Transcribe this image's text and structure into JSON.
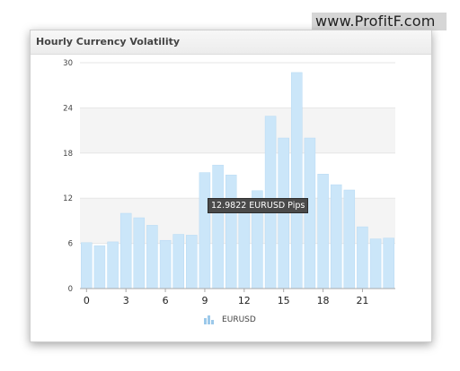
{
  "watermark": "www.ProfitF.com",
  "title": "Hourly Currency Volatility",
  "tooltip": "12.9822 EURUSD Pips",
  "legend_label": "EURUSD",
  "colors": {
    "bar": "#cbe6f9",
    "bar_stroke": "#b7daf4",
    "band": "#f4f4f4",
    "legend_icon": "#9cc9ea"
  },
  "chart_data": {
    "type": "bar",
    "title": "Hourly Currency Volatility",
    "xlabel": "",
    "ylabel": "",
    "x_ticks": [
      0,
      3,
      6,
      9,
      12,
      15,
      18,
      21
    ],
    "y_ticks": [
      0,
      6,
      12,
      18,
      24,
      30
    ],
    "ylim": [
      0,
      30
    ],
    "categories": [
      0,
      1,
      2,
      3,
      4,
      5,
      6,
      7,
      8,
      9,
      10,
      11,
      12,
      13,
      14,
      15,
      16,
      17,
      18,
      19,
      20,
      21,
      22,
      23
    ],
    "series": [
      {
        "name": "EURUSD",
        "values": [
          6.1,
          5.7,
          6.2,
          10.0,
          9.4,
          8.4,
          6.4,
          7.2,
          7.1,
          15.4,
          16.4,
          15.1,
          11.8,
          13.0,
          22.9,
          20.0,
          28.7,
          20.0,
          15.2,
          13.8,
          13.1,
          8.2,
          6.6,
          6.7
        ]
      }
    ],
    "legend": "bottom-center",
    "grid": "alternating-bands"
  }
}
